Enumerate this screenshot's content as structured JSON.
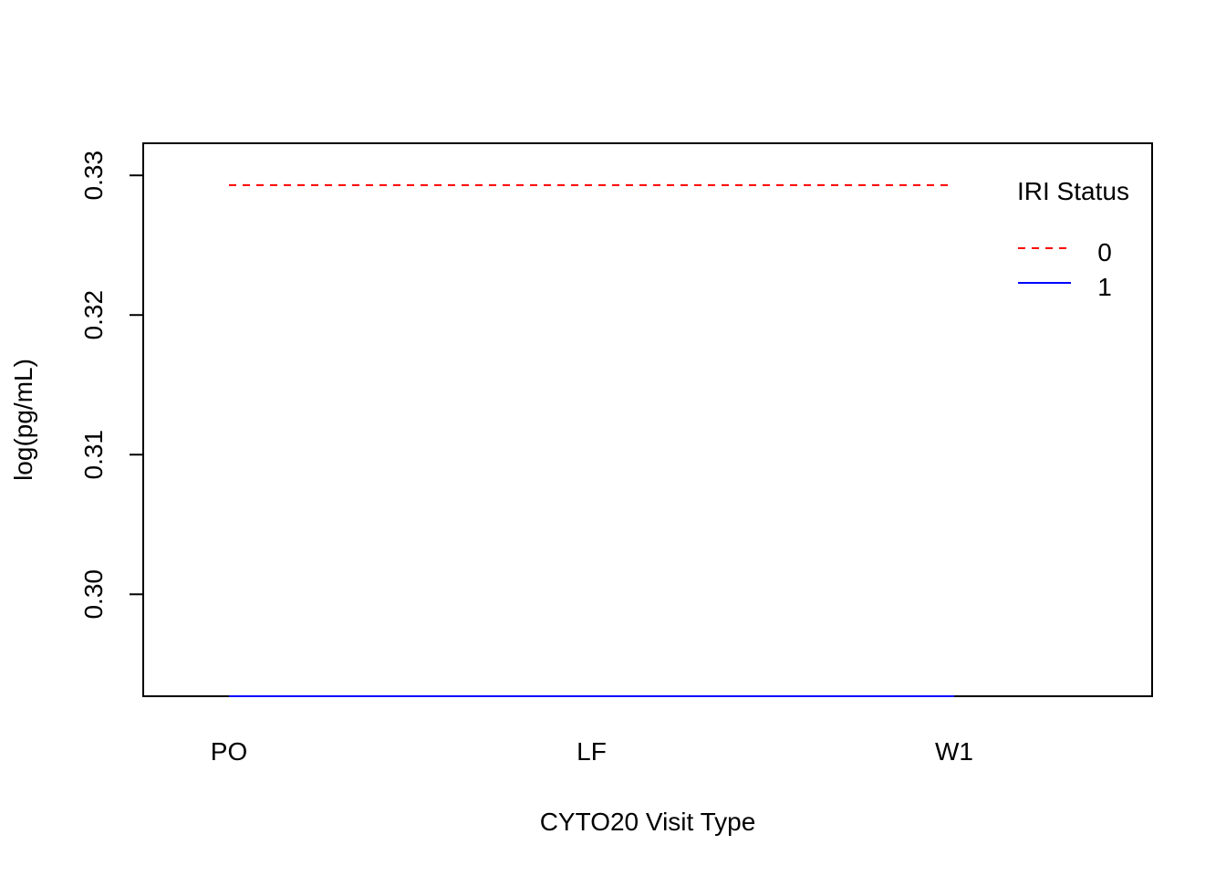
{
  "chart_data": {
    "type": "line",
    "title": "",
    "xlabel": "CYTO20 Visit Type",
    "ylabel": "log(pg/mL)",
    "categories": [
      "PO",
      "LF",
      "W1"
    ],
    "ylim": [
      0.2927,
      0.3323
    ],
    "yticks": [
      0.3,
      0.31,
      0.32,
      0.33
    ],
    "ytick_labels": [
      "0.30",
      "0.31",
      "0.32",
      "0.33"
    ],
    "grid": false,
    "legend": {
      "title": "IRI Status",
      "placement": "top-right"
    },
    "series": [
      {
        "name": "0",
        "values": [
          0.3293,
          0.3293,
          0.3293
        ],
        "color": "#ff0000",
        "line_style": "dashed"
      },
      {
        "name": "1",
        "values": [
          0.2927,
          0.2927,
          0.2927
        ],
        "color": "#0000ff",
        "line_style": "solid"
      }
    ]
  }
}
